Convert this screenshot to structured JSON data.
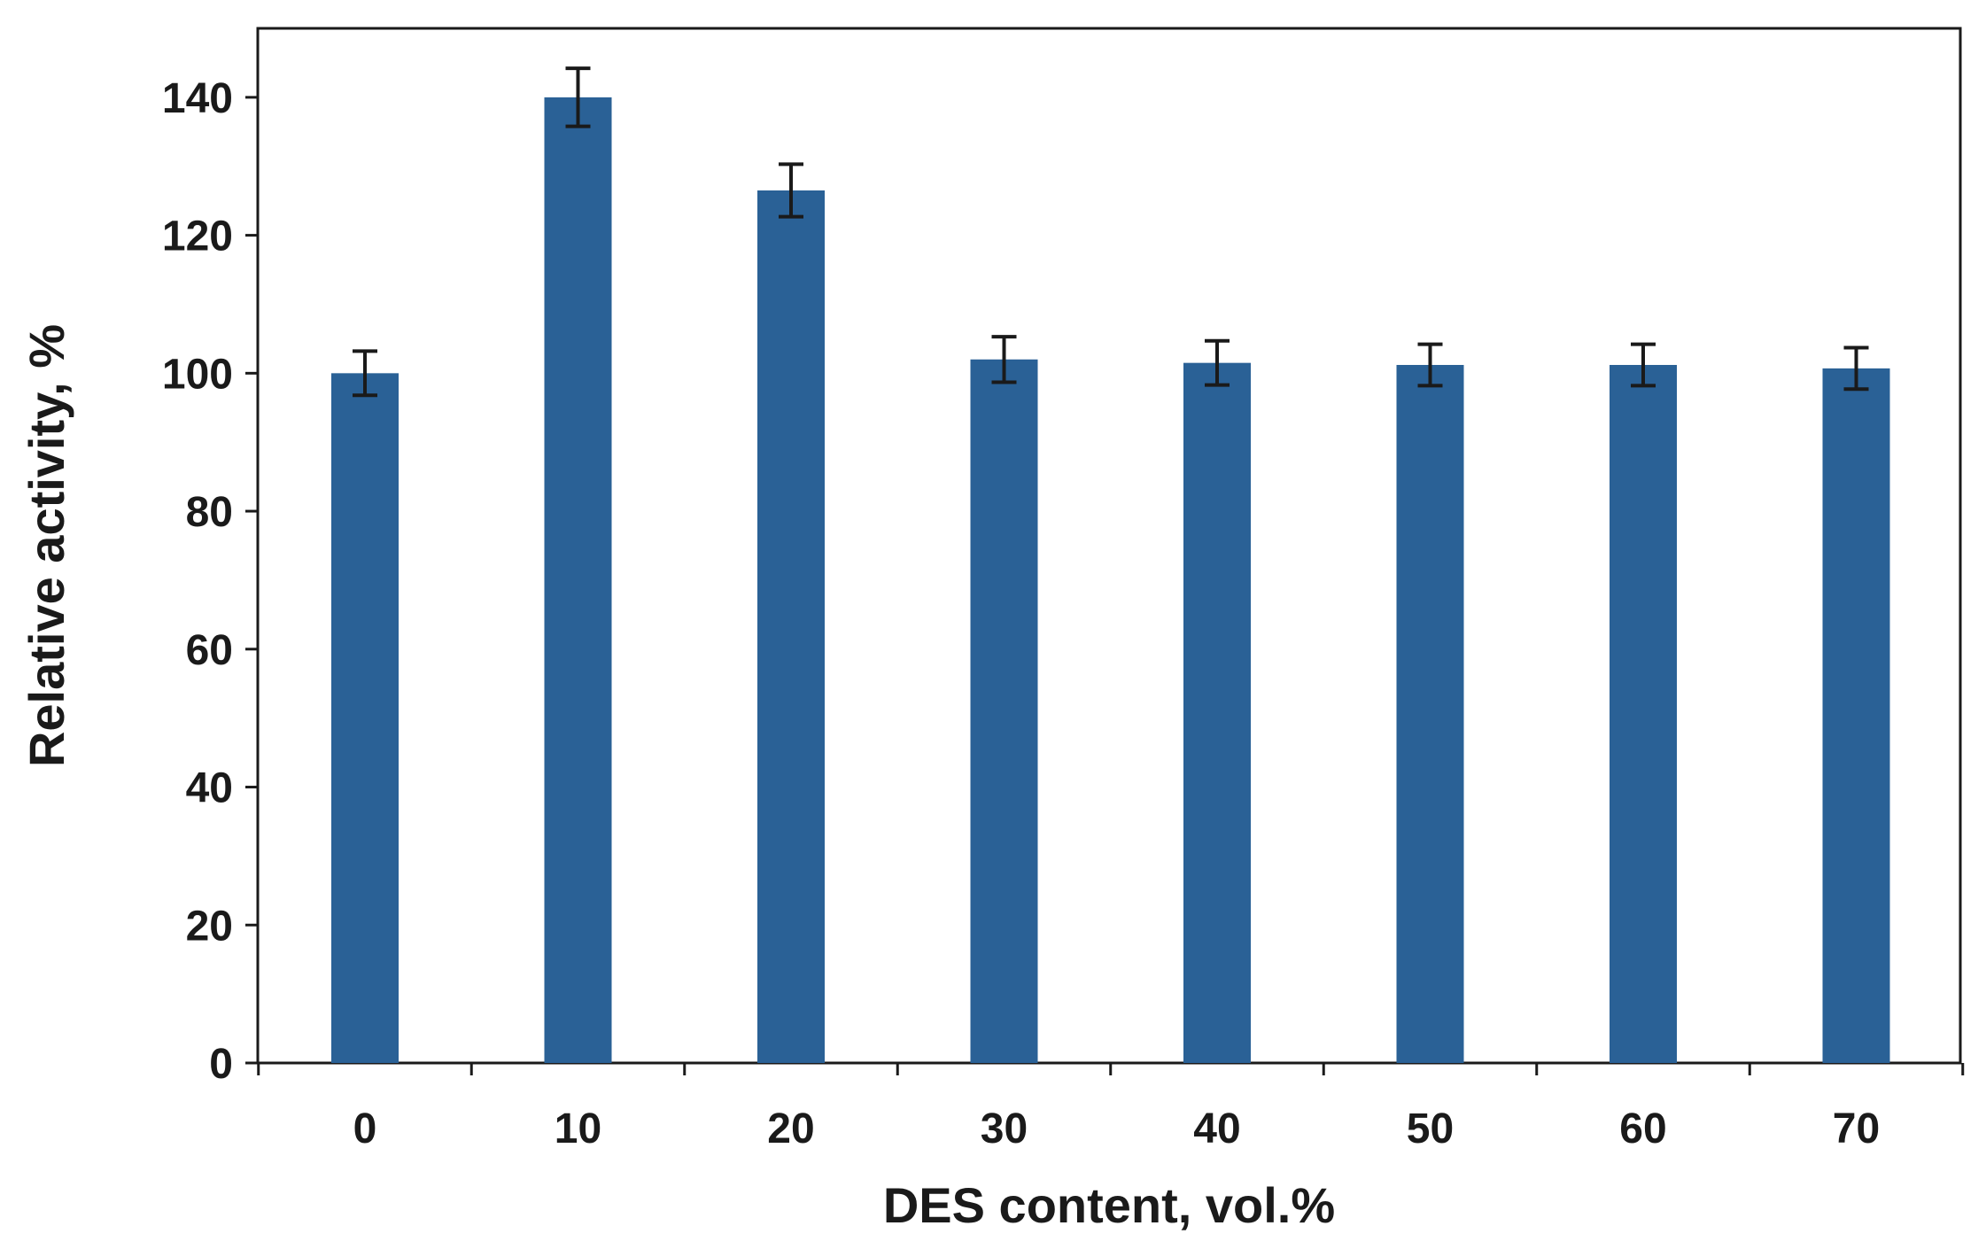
{
  "chart_data": {
    "type": "bar",
    "title": "",
    "xlabel": "DES content, vol.%",
    "ylabel": "Relative activity, %",
    "categories": [
      "0",
      "10",
      "20",
      "30",
      "40",
      "50",
      "60",
      "70"
    ],
    "values": [
      100,
      140,
      126.5,
      102,
      101.5,
      101.2,
      101.2,
      100.7
    ],
    "errors": [
      3.2,
      4.2,
      3.8,
      3.3,
      3.2,
      3.0,
      3.0,
      3.0
    ],
    "ylim": [
      0,
      150
    ],
    "yticks": [
      "0",
      "20",
      "40",
      "60",
      "80",
      "100",
      "120",
      "140"
    ],
    "grid": false,
    "bar_color": "#2a6196",
    "axis_color": "#1a1a1a"
  }
}
